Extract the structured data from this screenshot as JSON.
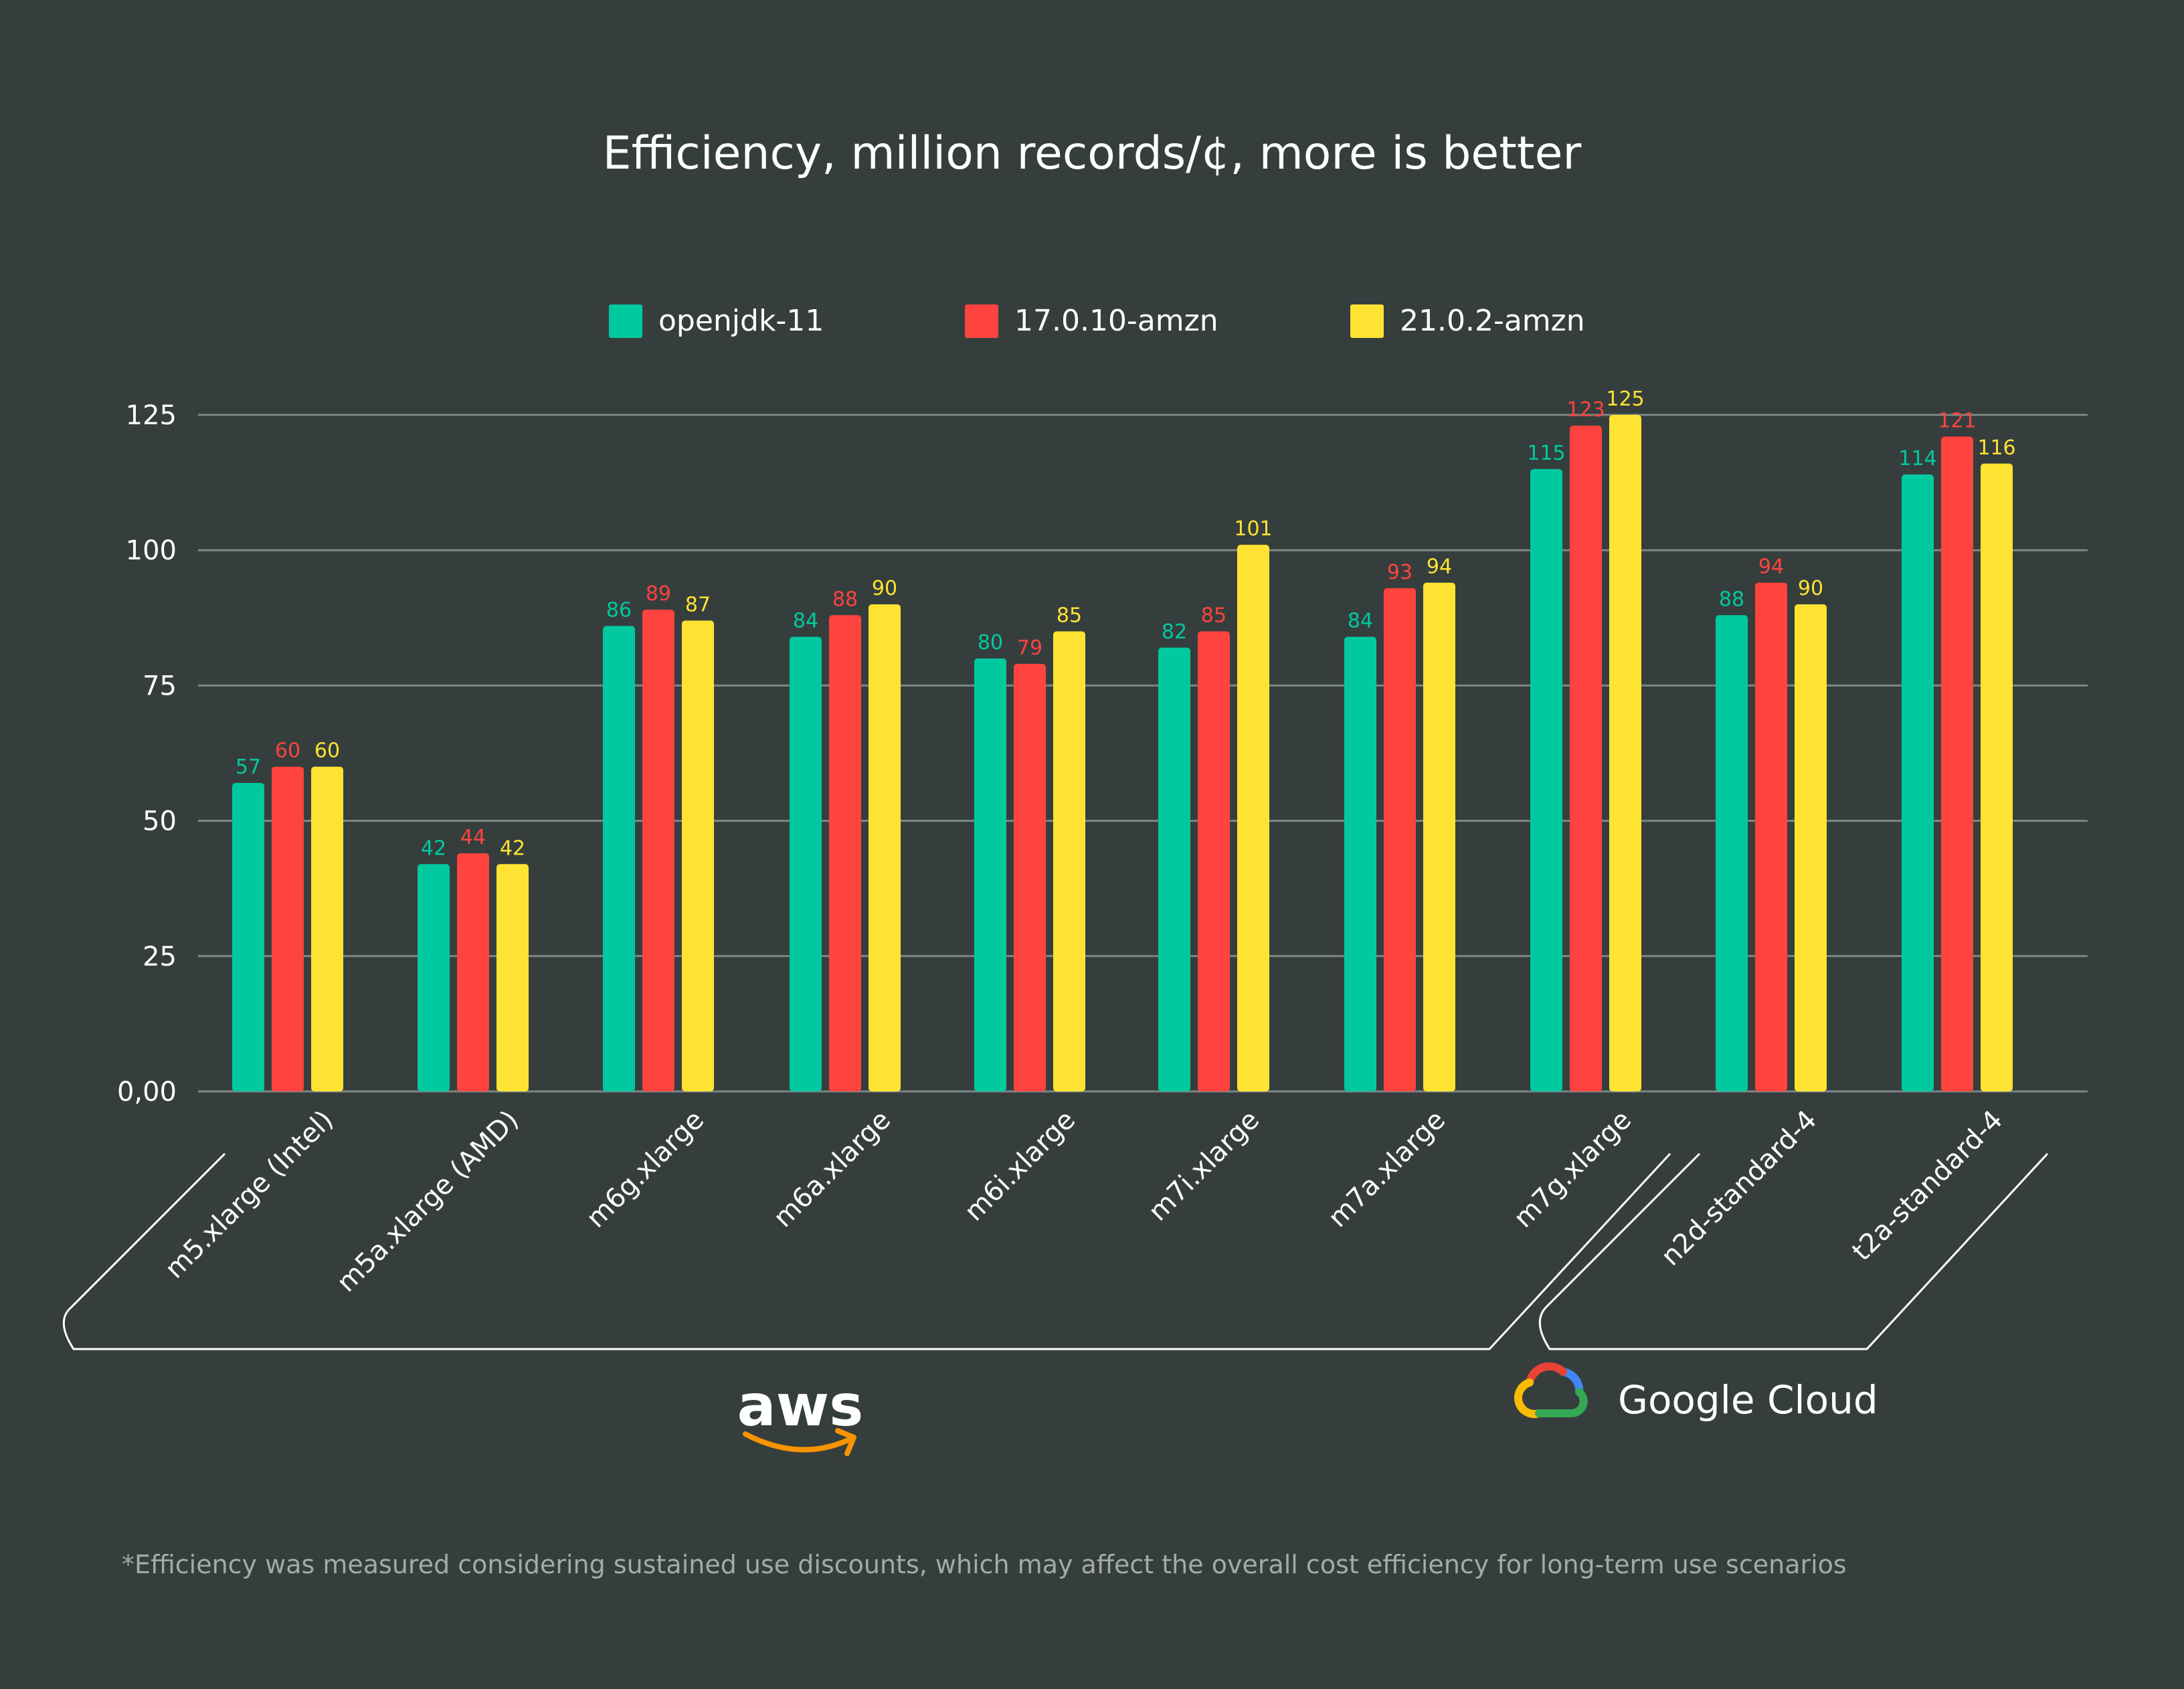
{
  "chart_data": {
    "type": "bar",
    "title": "Efficiency, million records/¢, more is better",
    "categories": [
      "m5.xlarge (Intel)",
      "m5a.xlarge (AMD)",
      "m6g.xlarge",
      "m6a.xlarge",
      "m6i.xlarge",
      "m7i.xlarge",
      "m7a.xlarge",
      "m7g.xlarge",
      "n2d-standard-4",
      "t2a-standard-4"
    ],
    "series": [
      {
        "name": "openjdk-11",
        "color": "#00c9a0",
        "values": [
          57,
          42,
          86,
          84,
          80,
          82,
          84,
          115,
          88,
          114
        ]
      },
      {
        "name": "17.0.10-amzn",
        "color": "#ff433e",
        "values": [
          60,
          44,
          89,
          88,
          79,
          85,
          93,
          123,
          94,
          121
        ]
      },
      {
        "name": "21.0.2-amzn",
        "color": "#ffe332",
        "values": [
          60,
          42,
          87,
          90,
          85,
          101,
          94,
          125,
          90,
          116
        ]
      }
    ],
    "data_labels": [
      [
        "57",
        "42",
        "86",
        "84",
        "80",
        "82",
        "84",
        "115",
        "88",
        "114"
      ],
      [
        "60",
        "44",
        "89",
        "88",
        "79",
        "85",
        "93",
        "123",
        "94",
        "121"
      ],
      [
        "60",
        "42",
        "87",
        "90",
        "85",
        "101",
        "94",
        "125",
        "90",
        "116"
      ]
    ],
    "y_ticks": [
      {
        "value": 0,
        "label": "0,00"
      },
      {
        "value": 25,
        "label": "25"
      },
      {
        "value": 50,
        "label": "50"
      },
      {
        "value": 75,
        "label": "75"
      },
      {
        "value": 100,
        "label": "100"
      },
      {
        "value": 125,
        "label": "125"
      }
    ],
    "ylim": [
      0,
      125
    ],
    "grid": true,
    "legend_position": "top-center",
    "groups": [
      {
        "name": "aws",
        "categories": [
          "m5.xlarge (Intel)",
          "m5a.xlarge (AMD)",
          "m6g.xlarge",
          "m6a.xlarge",
          "m6i.xlarge",
          "m7i.xlarge",
          "m7a.xlarge",
          "m7g.xlarge"
        ]
      },
      {
        "name": "Google Cloud",
        "categories": [
          "n2d-standard-4",
          "t2a-standard-4"
        ]
      }
    ]
  },
  "footnote": "*Efficiency was measured considering sustained use discounts, which may affect the overall cost efficiency for long-term use scenarios",
  "colors": {
    "background": "#363e3d",
    "grid": "#7d8785",
    "aws_smile": "#f79400",
    "google_blue": "#4285f4",
    "google_red": "#ea4335",
    "google_yellow": "#fbbc05",
    "google_green": "#34a853"
  }
}
